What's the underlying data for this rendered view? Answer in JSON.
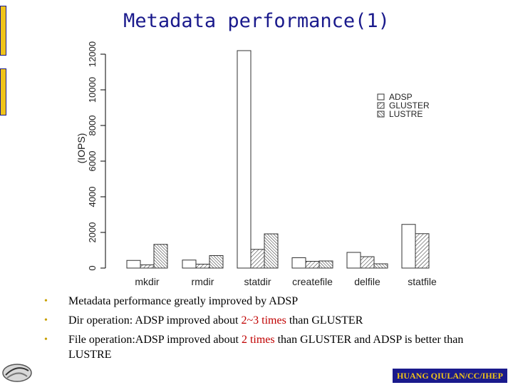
{
  "slide": {
    "title": "Metadata performance(1)",
    "footer": "HUANG QIULAN/CC/IHEP",
    "bullets": [
      {
        "pre": "Metadata performance greatly improved by ADSP",
        "hl": "",
        "post": ""
      },
      {
        "pre": "Dir operation: ADSP improved about ",
        "hl": "2~3 times",
        "post": "  than GLUSTER"
      },
      {
        "pre": "File operation:ADSP improved about ",
        "hl": "2 times",
        "post": " than GLUSTER and ADSP is better than LUSTRE"
      }
    ]
  },
  "chart_data": {
    "type": "bar",
    "title": "",
    "xlabel": "",
    "ylabel": "(IOPS)",
    "ylim": [
      0,
      12000
    ],
    "yticks": [
      "0",
      "2000",
      "4000",
      "6000",
      "8000",
      "10000",
      "12000"
    ],
    "categories": [
      "mkdir",
      "rmdir",
      "statdir",
      "createfile",
      "delfile",
      "statfile"
    ],
    "series": [
      {
        "name": "ADSP",
        "fill": "open",
        "values": [
          430,
          450,
          12200,
          580,
          880,
          2450
        ]
      },
      {
        "name": "GLUSTER",
        "fill": "dense-hatch",
        "values": [
          180,
          220,
          1050,
          380,
          640,
          1930
        ]
      },
      {
        "name": "LUSTRE",
        "fill": "hatch",
        "values": [
          1330,
          700,
          1920,
          400,
          240,
          0
        ]
      }
    ],
    "legend": "top-right",
    "grid": false
  }
}
